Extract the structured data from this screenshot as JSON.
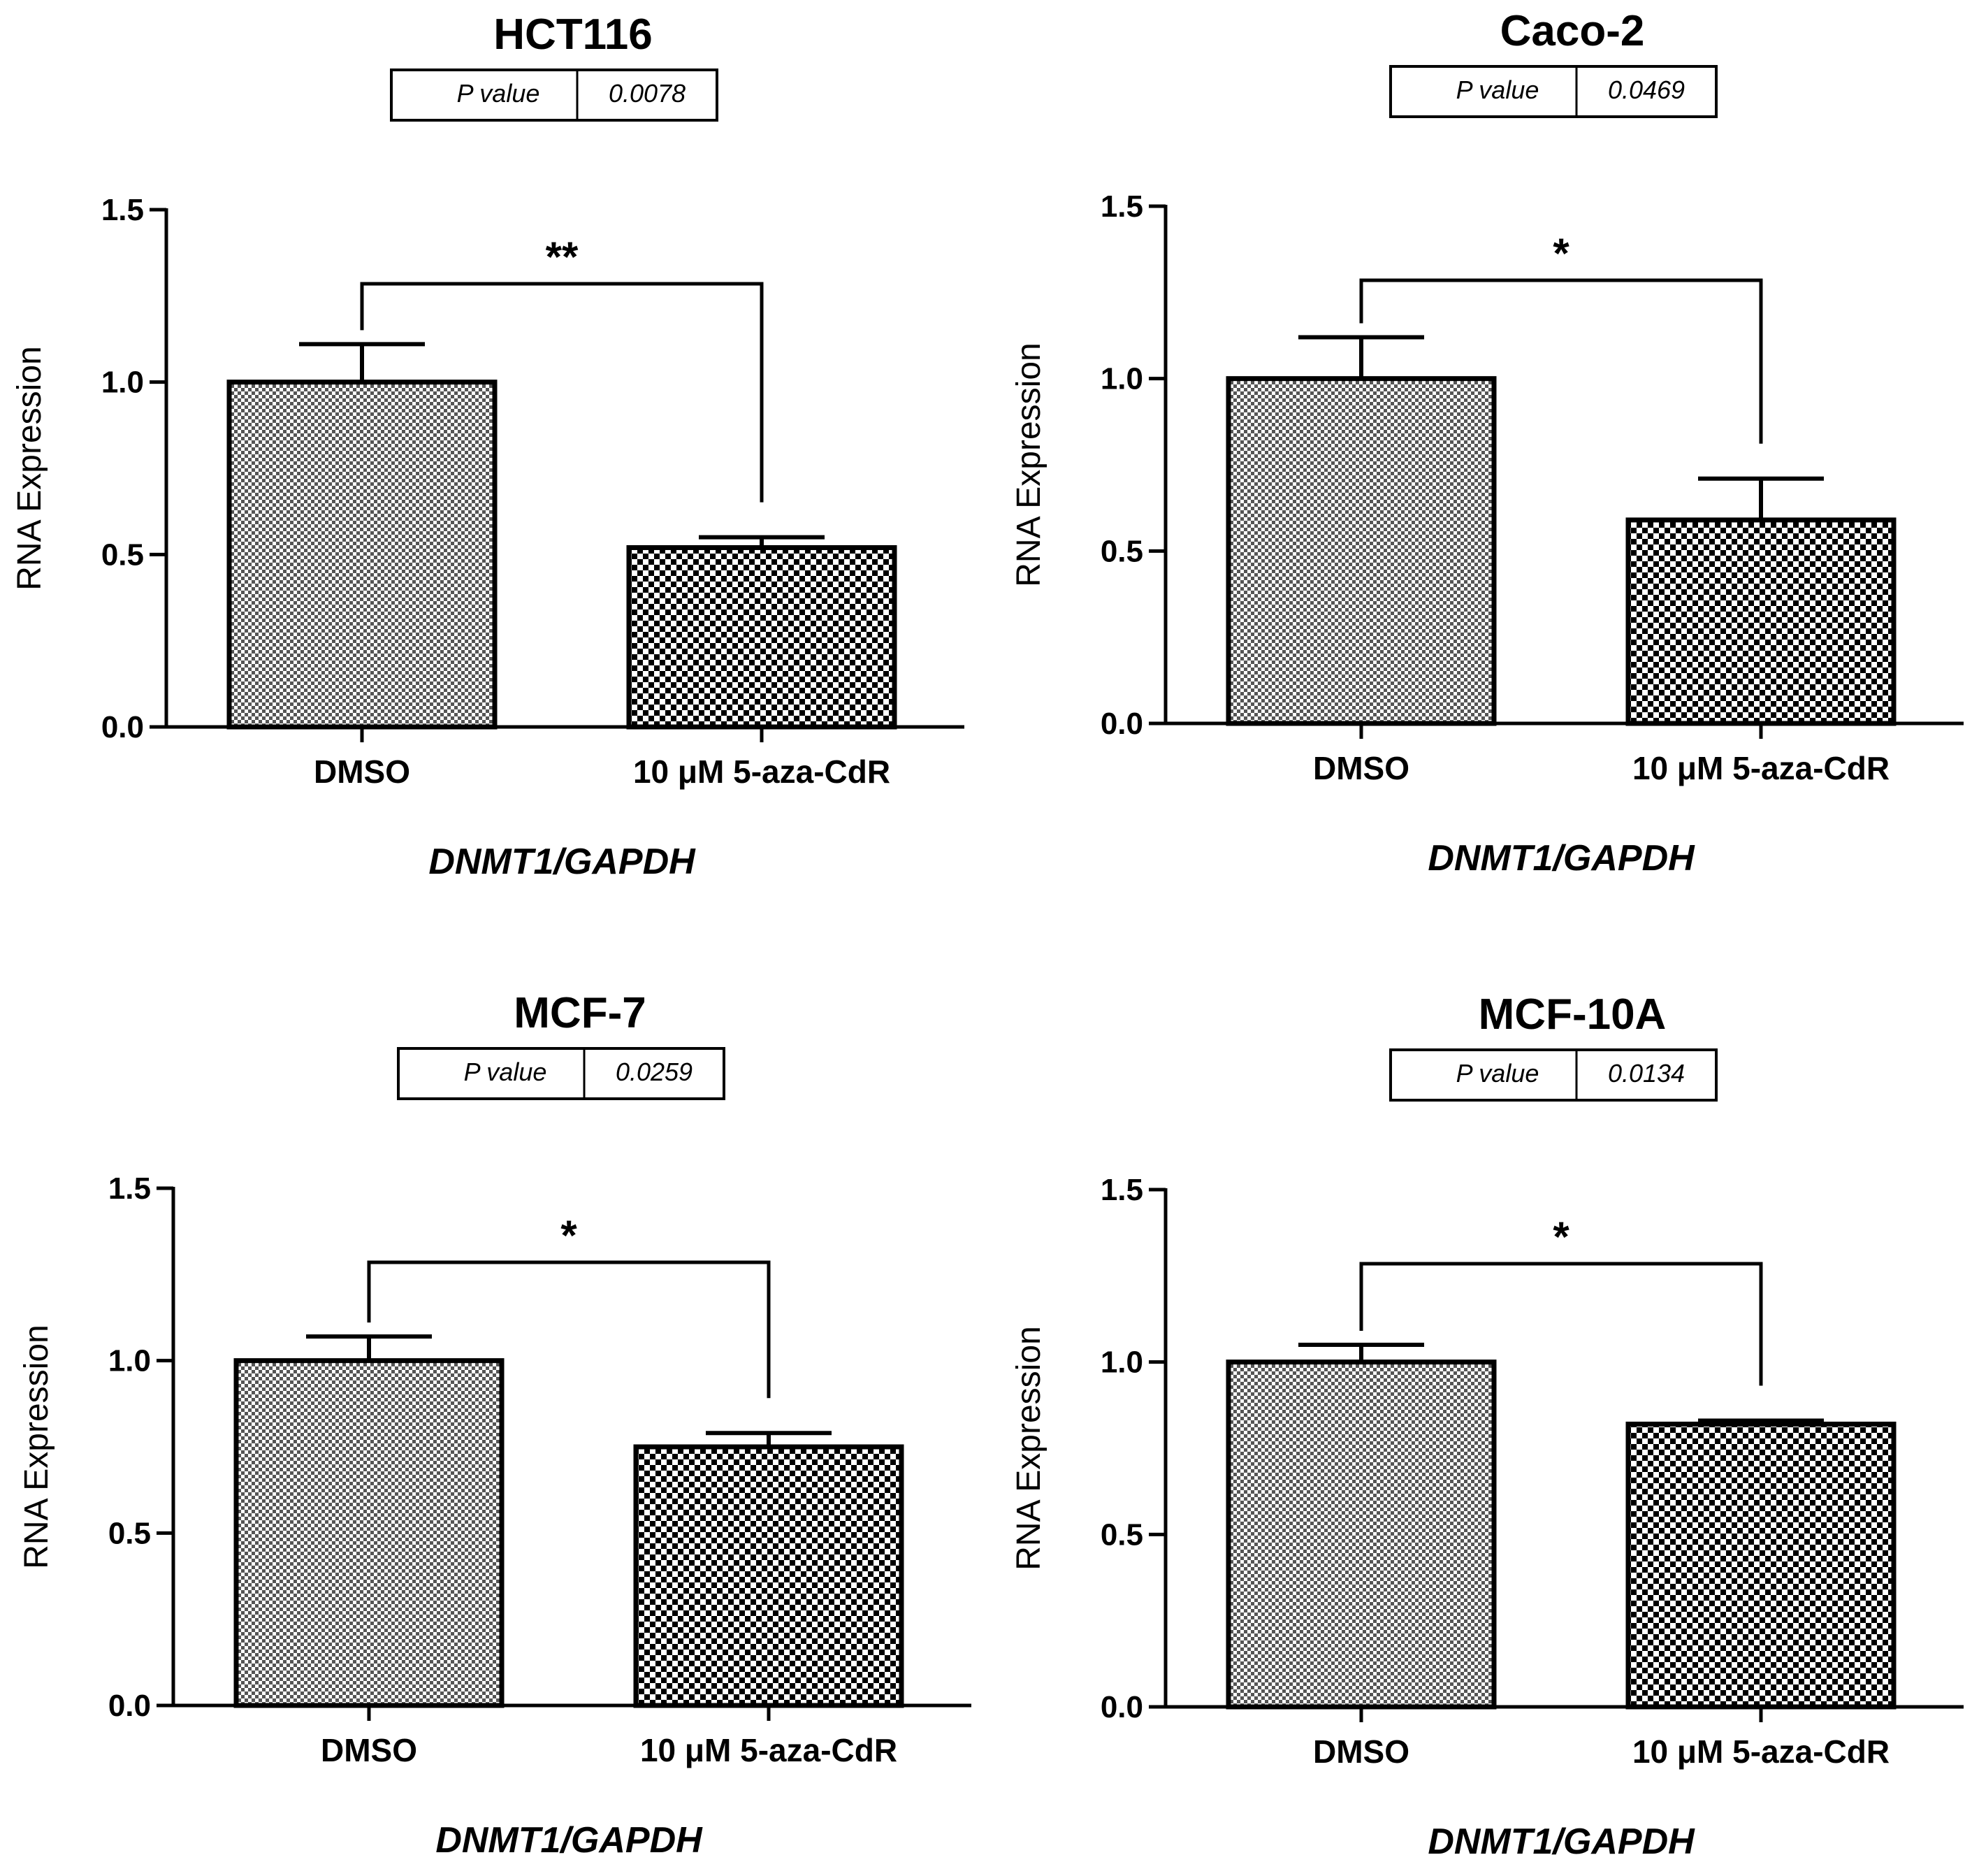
{
  "chart_data": [
    {
      "type": "bar",
      "title": "HCT116",
      "p_value_label": "P value",
      "p_value": "0.0078",
      "categories": [
        "DMSO",
        "10 μM 5-aza-CdR"
      ],
      "values": [
        1.0,
        0.52
      ],
      "errors": [
        0.11,
        0.03
      ],
      "significance": "**",
      "xlabel": "DNMT1/GAPDH",
      "ylabel": "RNA Expression",
      "ylim": [
        0,
        1.5
      ],
      "yticks": [
        "0.0",
        "0.5",
        "1.0",
        "1.5"
      ]
    },
    {
      "type": "bar",
      "title": "Caco-2",
      "p_value_label": "P value",
      "p_value": "0.0469",
      "categories": [
        "DMSO",
        "10 μM 5-aza-CdR"
      ],
      "values": [
        1.0,
        0.59
      ],
      "errors": [
        0.12,
        0.12
      ],
      "significance": "*",
      "xlabel": "DNMT1/GAPDH",
      "ylabel": "RNA Expression",
      "ylim": [
        0,
        1.5
      ],
      "yticks": [
        "0.0",
        "0.5",
        "1.0",
        "1.5"
      ]
    },
    {
      "type": "bar",
      "title": "MCF-7",
      "p_value_label": "P value",
      "p_value": "0.0259",
      "categories": [
        "DMSO",
        "10 μM 5-aza-CdR"
      ],
      "values": [
        1.0,
        0.75
      ],
      "errors": [
        0.07,
        0.04
      ],
      "significance": "*",
      "xlabel": "DNMT1/GAPDH",
      "ylabel": "RNA Expression",
      "ylim": [
        0,
        1.5
      ],
      "yticks": [
        "0.0",
        "0.5",
        "1.0",
        "1.5"
      ]
    },
    {
      "type": "bar",
      "title": "MCF-10A",
      "p_value_label": "P value",
      "p_value": "0.0134",
      "categories": [
        "DMSO",
        "10 μM 5-aza-CdR"
      ],
      "values": [
        1.0,
        0.82
      ],
      "errors": [
        0.05,
        0.01
      ],
      "significance": "*",
      "xlabel": "DNMT1/GAPDH",
      "ylabel": "RNA Expression",
      "ylim": [
        0,
        1.5
      ],
      "yticks": [
        "0.0",
        "0.5",
        "1.0",
        "1.5"
      ]
    }
  ],
  "colors": {
    "axis": "#000000",
    "fine_check_dark": "#555555",
    "coarse_check_dark": "#000000",
    "background": "#ffffff"
  }
}
